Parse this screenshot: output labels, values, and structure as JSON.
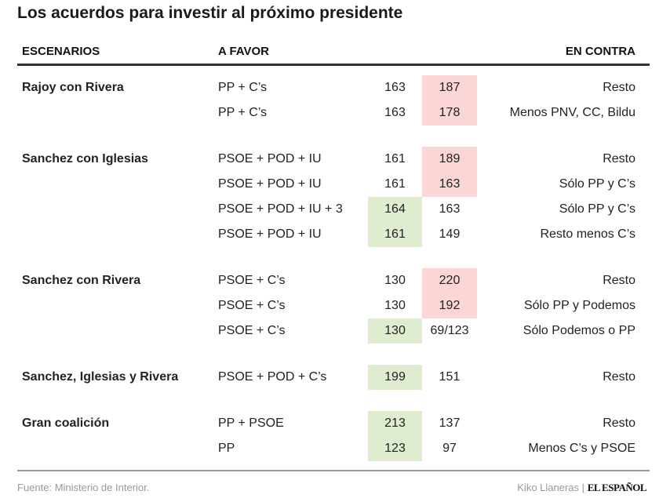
{
  "title": "Los acuerdos para investir al próximo presidente",
  "headers": {
    "scenarios": "ESCENARIOS",
    "favor": "A FAVOR",
    "contra": "EN CONTRA"
  },
  "colors": {
    "against_majority": "#fad6d6",
    "favor_majority": "#dfecd0"
  },
  "groups": [
    {
      "scenario": "Rajoy con Rivera",
      "rows": [
        {
          "favor": "PP + C’s",
          "favor_seats": "163",
          "contra_seats": "187",
          "contra": "Resto",
          "highlight": "contra"
        },
        {
          "favor": "PP + C’s",
          "favor_seats": "163",
          "contra_seats": "178",
          "contra": "Menos PNV, CC, Bildu",
          "highlight": "contra"
        }
      ]
    },
    {
      "scenario": "Sanchez con Iglesias",
      "rows": [
        {
          "favor": "PSOE + POD + IU",
          "favor_seats": "161",
          "contra_seats": "189",
          "contra": "Resto",
          "highlight": "contra"
        },
        {
          "favor": "PSOE + POD + IU",
          "favor_seats": "161",
          "contra_seats": "163",
          "contra": "Sólo PP y C’s",
          "highlight": "contra"
        },
        {
          "favor": "PSOE + POD + IU + 3",
          "favor_seats": "164",
          "contra_seats": "163",
          "contra": "Sólo PP y C’s",
          "highlight": "favor"
        },
        {
          "favor": "PSOE + POD + IU",
          "favor_seats": "161",
          "contra_seats": "149",
          "contra": "Resto menos C’s",
          "highlight": "favor"
        }
      ]
    },
    {
      "scenario": "Sanchez con Rivera",
      "rows": [
        {
          "favor": "PSOE + C’s",
          "favor_seats": "130",
          "contra_seats": "220",
          "contra": "Resto",
          "highlight": "contra"
        },
        {
          "favor": "PSOE + C’s",
          "favor_seats": "130",
          "contra_seats": "192",
          "contra": "Sólo PP y Podemos",
          "highlight": "contra"
        },
        {
          "favor": "PSOE + C’s",
          "favor_seats": "130",
          "contra_seats": "69/123",
          "contra": "Sólo Podemos o PP",
          "highlight": "favor"
        }
      ]
    },
    {
      "scenario": "Sanchez, Iglesias y Rivera",
      "rows": [
        {
          "favor": "PSOE + POD + C’s",
          "favor_seats": "199",
          "contra_seats": "151",
          "contra": "Resto",
          "highlight": "favor"
        }
      ]
    },
    {
      "scenario": "Gran coalición",
      "rows": [
        {
          "favor": "PP + PSOE",
          "favor_seats": "213",
          "contra_seats": "137",
          "contra": "Resto",
          "highlight": "favor"
        },
        {
          "favor": "PP",
          "favor_seats": "123",
          "contra_seats": "97",
          "contra": "Menos C’s y PSOE",
          "highlight": "favor"
        }
      ]
    }
  ],
  "footer": {
    "source": "Fuente: Ministerio de Interior.",
    "author": "Kiko Llaneras",
    "separator": "|",
    "brand": "EL ESPAÑOL"
  }
}
